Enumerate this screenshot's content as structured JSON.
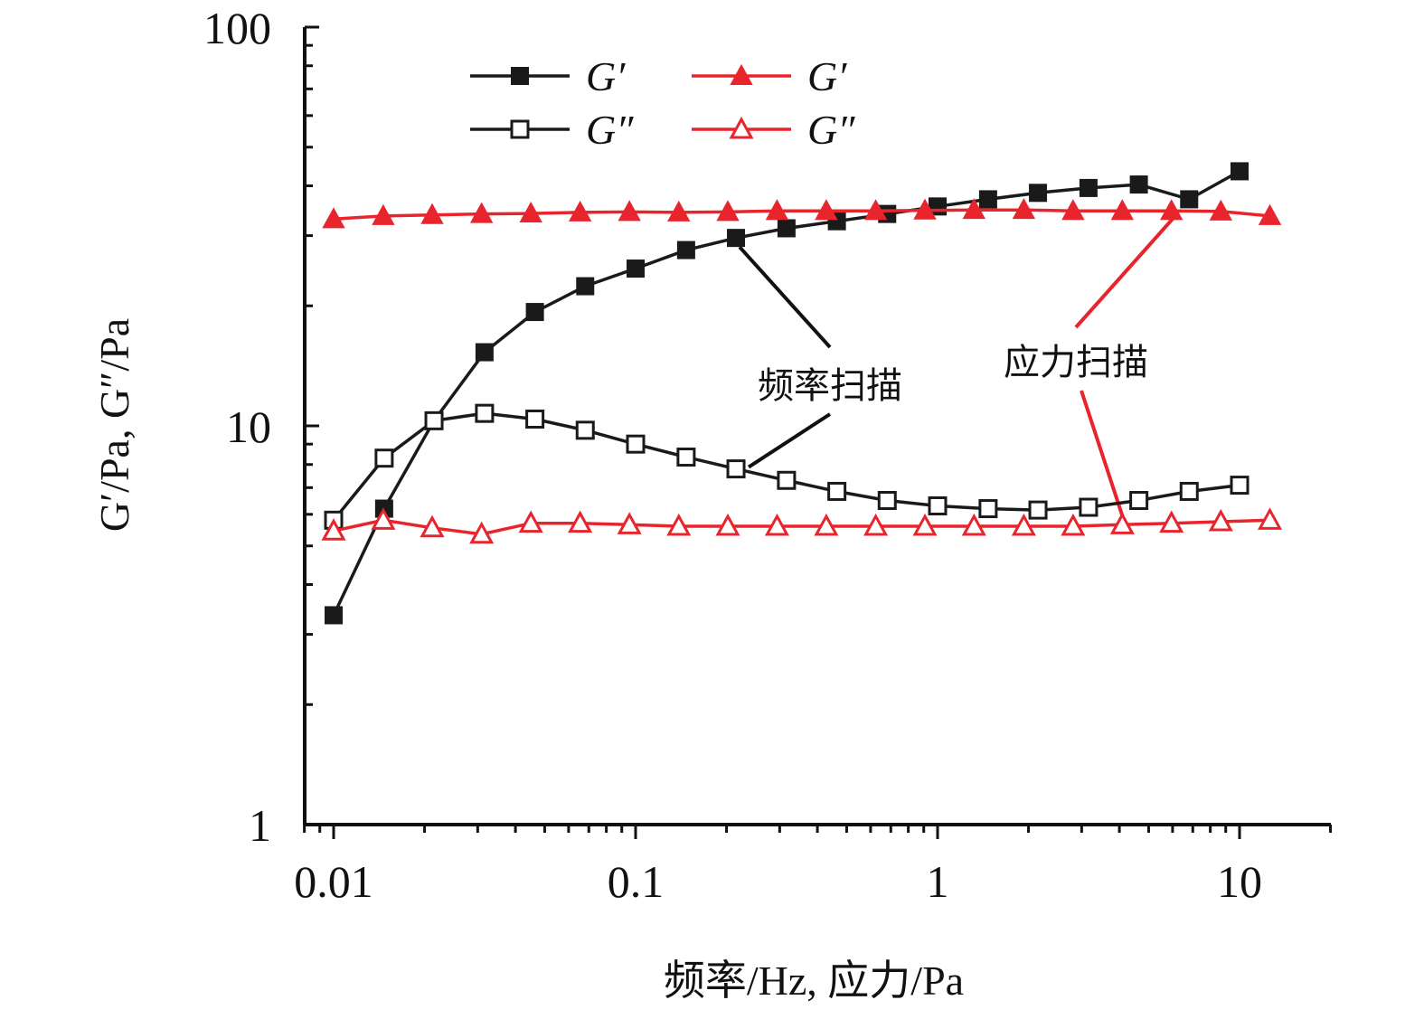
{
  "chart_data": {
    "type": "line",
    "xscale": "log",
    "yscale": "log",
    "xlim": [
      0.008,
      20
    ],
    "ylim": [
      1,
      100
    ],
    "xlabel": "频率/Hz, 应力/Pa",
    "ylabel": "G′/Pa, G″/Pa",
    "x_ticks": [
      {
        "value": 0.01,
        "label": "0.01"
      },
      {
        "value": 0.1,
        "label": "0.1"
      },
      {
        "value": 1,
        "label": "1"
      },
      {
        "value": 10,
        "label": "10"
      }
    ],
    "y_ticks": [
      {
        "value": 1,
        "label": "1"
      },
      {
        "value": 10,
        "label": "10"
      },
      {
        "value": 100,
        "label": "100"
      }
    ],
    "grid": false,
    "legend_position": "top-left",
    "series": [
      {
        "name": "G′",
        "group": "频率扫描",
        "color": "#1a1a1a",
        "marker": "square-filled",
        "x": [
          0.01,
          0.0147,
          0.0215,
          0.0316,
          0.0464,
          0.0681,
          0.1,
          0.147,
          0.215,
          0.316,
          0.464,
          0.681,
          1,
          1.47,
          2.15,
          3.16,
          4.64,
          6.81,
          10
        ],
        "y": [
          3.35,
          6.2,
          10.3,
          15.3,
          19.3,
          22.4,
          24.8,
          27.6,
          29.6,
          31.3,
          32.6,
          34.0,
          35.5,
          37.0,
          38.4,
          39.5,
          40.3,
          37.0,
          43.5
        ]
      },
      {
        "name": "G″",
        "group": "频率扫描",
        "color": "#1a1a1a",
        "marker": "square-open",
        "x": [
          0.01,
          0.0147,
          0.0215,
          0.0316,
          0.0464,
          0.0681,
          0.1,
          0.147,
          0.215,
          0.316,
          0.464,
          0.681,
          1,
          1.47,
          2.15,
          3.16,
          4.64,
          6.81,
          10
        ],
        "y": [
          5.8,
          8.3,
          10.3,
          10.75,
          10.4,
          9.75,
          9.0,
          8.35,
          7.8,
          7.3,
          6.85,
          6.5,
          6.3,
          6.2,
          6.15,
          6.25,
          6.5,
          6.85,
          7.1
        ]
      },
      {
        "name": "G′",
        "group": "应力扫描",
        "color": "#e8242c",
        "marker": "triangle-filled",
        "x": [
          0.01,
          0.0146,
          0.0212,
          0.0309,
          0.045,
          0.0655,
          0.0954,
          0.139,
          0.202,
          0.294,
          0.428,
          0.624,
          0.908,
          1.32,
          1.93,
          2.81,
          4.09,
          5.95,
          8.67,
          12.6
        ],
        "y": [
          33.0,
          33.6,
          33.8,
          34.0,
          34.1,
          34.3,
          34.4,
          34.3,
          34.4,
          34.6,
          34.6,
          34.6,
          34.7,
          34.8,
          34.8,
          34.6,
          34.6,
          34.6,
          34.5,
          33.6
        ]
      },
      {
        "name": "G″",
        "group": "应力扫描",
        "color": "#e8242c",
        "marker": "triangle-open",
        "x": [
          0.01,
          0.0146,
          0.0212,
          0.0309,
          0.045,
          0.0655,
          0.0954,
          0.139,
          0.202,
          0.294,
          0.428,
          0.624,
          0.908,
          1.32,
          1.93,
          2.81,
          4.09,
          5.95,
          8.67,
          12.6
        ],
        "y": [
          5.45,
          5.8,
          5.55,
          5.35,
          5.7,
          5.7,
          5.65,
          5.6,
          5.6,
          5.6,
          5.6,
          5.6,
          5.6,
          5.6,
          5.6,
          5.6,
          5.65,
          5.7,
          5.75,
          5.8
        ]
      }
    ],
    "annotations": [
      {
        "text": "频率扫描",
        "targets": [
          {
            "x": 0.215,
            "y": 29.6
          },
          {
            "x": 0.215,
            "y": 7.8
          }
        ]
      },
      {
        "text": "应力扫描",
        "targets": [
          {
            "x": 5.95,
            "y": 34.6
          },
          {
            "x": 4.09,
            "y": 5.65
          }
        ]
      }
    ]
  }
}
